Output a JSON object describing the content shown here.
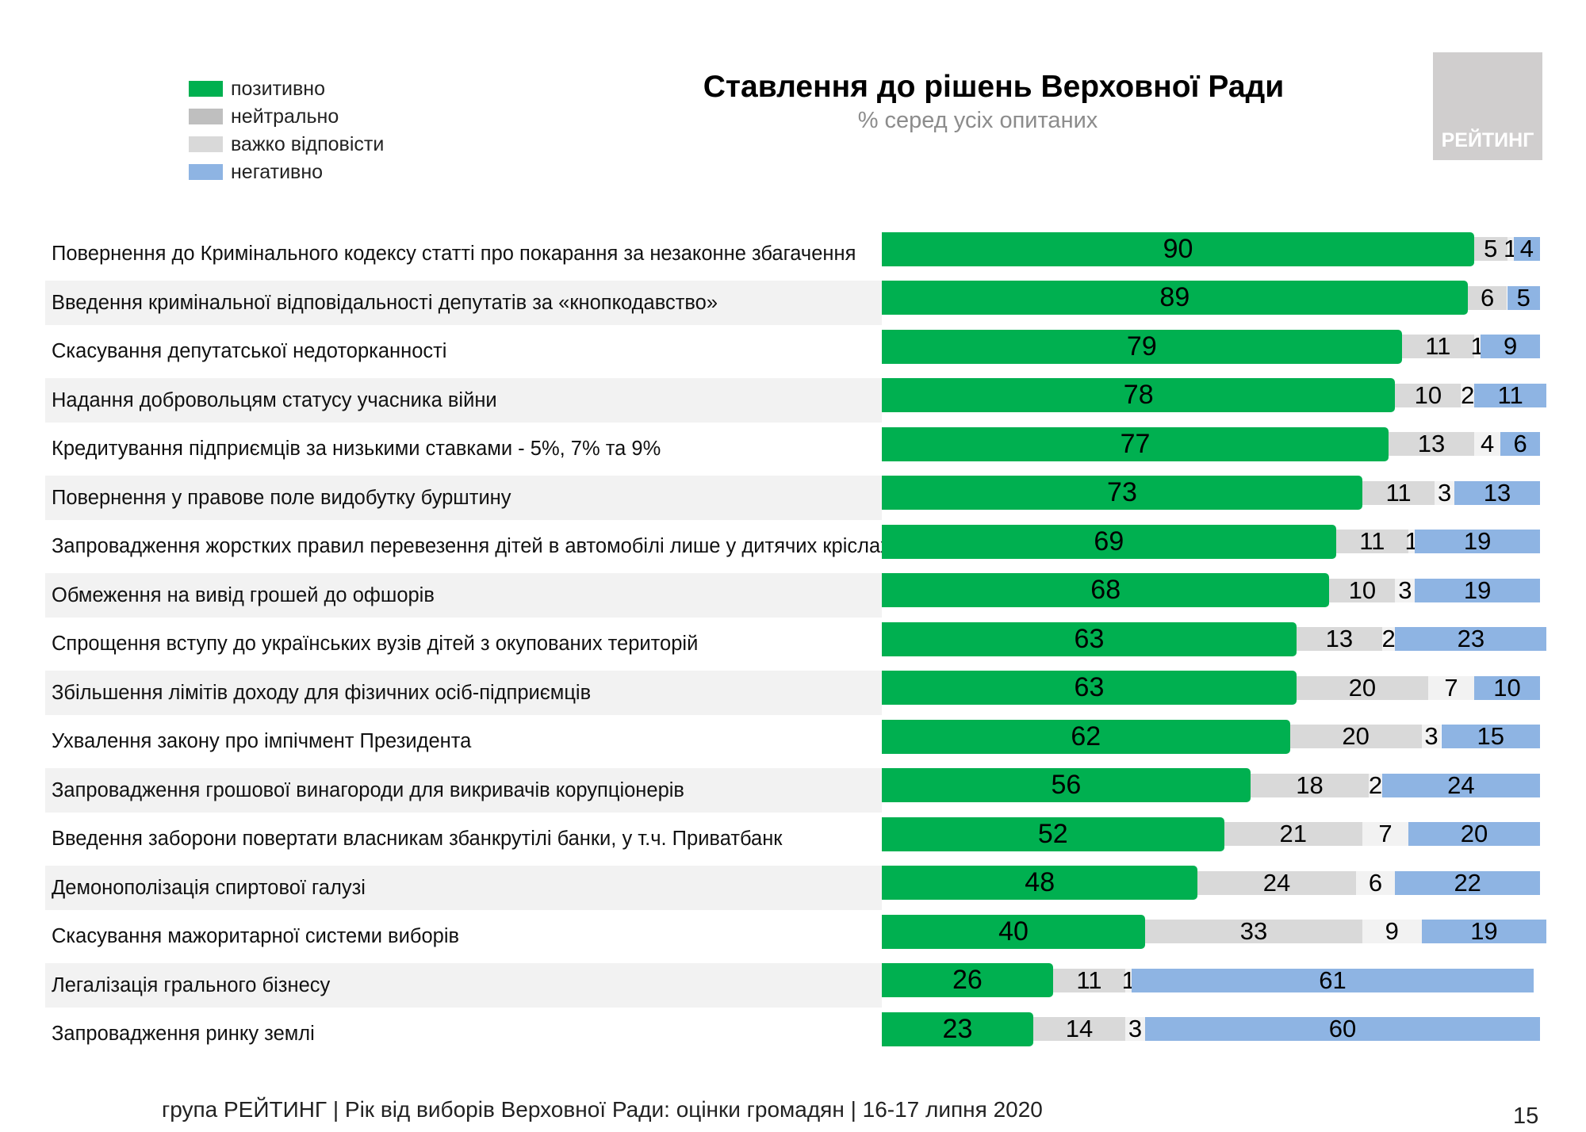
{
  "chart_data": {
    "type": "bar",
    "orientation": "horizontal",
    "stacked": true,
    "title": "Ставлення до рішень Верховної Ради",
    "subtitle": "% серед усіх опитаних",
    "legend_position": "top-left",
    "grid": false,
    "xlim": [
      0,
      100
    ],
    "categories": [
      "Повернення до Кримінального кодексу статті про покарання за незаконне збагачення",
      "Введення кримінальної відповідальності депутатів за «кнопкодавство»",
      "Скасування депутатської недоторканності",
      "Надання добровольцям статусу учасника війни",
      "Кредитування підприємців за низькими ставками - 5%, 7% та 9%",
      "Повернення у правове поле видобутку бурштину",
      "Запровадження жорстких правил перевезення дітей в автомобілі лише у дитячих кріслах",
      "Обмеження на вивід грошей до офшорів",
      "Спрощення вступу до українських вузів дітей з окупованих територій",
      "Збільшення лімітів доходу для фізичних осіб-підприємців",
      "Ухвалення закону про імпічмент Президента",
      "Запровадження грошової винагороди для викривачів корупціонерів",
      "Введення заборони повертати власникам збанкрутілі банки, у т.ч. Приватбанк",
      "Демонополізація спиртової галузі",
      "Скасування мажоритарної системи виборів",
      "Легалізація грального бізнесу",
      "Запровадження ринку землі"
    ],
    "series": [
      {
        "name": "позитивно",
        "color": "#00b050",
        "values": [
          90,
          89,
          79,
          78,
          77,
          73,
          69,
          68,
          63,
          63,
          62,
          56,
          52,
          48,
          40,
          26,
          23
        ]
      },
      {
        "name": "нейтрально",
        "color": "#d9d9d9",
        "values": [
          5,
          6,
          11,
          10,
          13,
          11,
          11,
          10,
          13,
          20,
          20,
          18,
          21,
          24,
          33,
          11,
          14
        ]
      },
      {
        "name": "важко відповісти",
        "color": "#f2f2f2",
        "values": [
          1,
          0,
          1,
          2,
          4,
          3,
          1,
          3,
          2,
          7,
          3,
          2,
          7,
          6,
          9,
          1,
          3
        ]
      },
      {
        "name": "негативно",
        "color": "#8eb4e3",
        "values": [
          4,
          5,
          9,
          11,
          6,
          13,
          19,
          19,
          23,
          10,
          15,
          24,
          20,
          22,
          19,
          61,
          60
        ]
      }
    ]
  },
  "legend_swatch_colors": [
    "#00b050",
    "#bfbfbf",
    "#d9d9d9",
    "#8eb4e3"
  ],
  "logo": {
    "text": "РЕЙТИНГ"
  },
  "footer": {
    "text": "група РЕЙТИНГ | Рік від виборів Верховної Ради: оцінки громадян | 16-17 липня 2020",
    "page": "15"
  }
}
